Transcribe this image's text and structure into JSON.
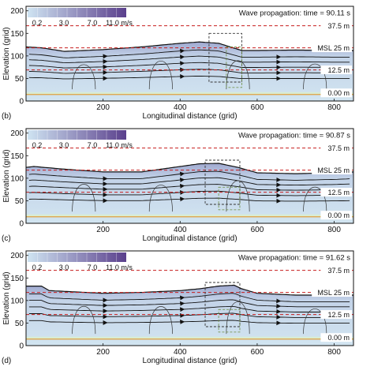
{
  "colorbar": {
    "labels": [
      "0.2",
      "3.0",
      "7.0",
      "11.0 m/s"
    ],
    "range": [
      0.2,
      11.0
    ],
    "colors": [
      "#cfe4f2",
      "#5a3f8c"
    ]
  },
  "chart_data": [
    {
      "panel": "b",
      "type": "area",
      "title": "Wave propagation: time = 90.11 s",
      "xlabel": "Longitudinal distance (grid)",
      "ylabel": "Elevation (grid)",
      "xlim": [
        0,
        850
      ],
      "ylim": [
        0,
        210
      ],
      "xticks": [
        "200",
        "400",
        "600",
        "800"
      ],
      "yticks": [
        "0",
        "50",
        "100",
        "150",
        "200"
      ],
      "reference_lines": [
        {
          "label": "37.5 m",
          "y": 167
        },
        {
          "label": "MSL 25 m",
          "y": 118
        },
        {
          "label": "12.5 m",
          "y": 69
        },
        {
          "label": "0.00 m",
          "y": 18
        }
      ],
      "surface": {
        "x": [
          0,
          40,
          100,
          200,
          300,
          350,
          400,
          450,
          500,
          530,
          560,
          600,
          700,
          800,
          850
        ],
        "y": [
          120,
          118,
          110,
          114,
          120,
          124,
          128,
          131,
          128,
          120,
          112,
          112,
          113,
          112,
          112
        ]
      },
      "highlight_box": {
        "x": [
          475,
          560
        ],
        "y": [
          42,
          150
        ]
      },
      "subbox": {
        "x": [
          520,
          560
        ],
        "y": [
          30,
          120
        ]
      }
    },
    {
      "panel": "c",
      "type": "area",
      "title": "Wave propagation: time = 90.87 s",
      "xlabel": "Longitudinal distance (grid)",
      "ylabel": "Elevation (grid)",
      "xlim": [
        0,
        850
      ],
      "ylim": [
        0,
        210
      ],
      "xticks": [
        "200",
        "400",
        "600",
        "800"
      ],
      "yticks": [
        "0",
        "50",
        "100",
        "150",
        "200"
      ],
      "reference_lines": [
        {
          "label": "37.5 m",
          "y": 167
        },
        {
          "label": "MSL 25 m",
          "y": 118
        },
        {
          "label": "12.5 m",
          "y": 69
        },
        {
          "label": "0.00 m",
          "y": 18
        }
      ],
      "surface": {
        "x": [
          0,
          20,
          100,
          200,
          300,
          400,
          450,
          500,
          550,
          600,
          700,
          800,
          850
        ],
        "y": [
          124,
          126,
          120,
          114,
          114,
          126,
          132,
          133,
          124,
          112,
          110,
          112,
          114
        ]
      },
      "highlight_box": {
        "x": [
          465,
          555
        ],
        "y": [
          42,
          140
        ]
      },
      "subbox": {
        "x": [
          500,
          555
        ],
        "y": [
          30,
          80
        ]
      }
    },
    {
      "panel": "d",
      "type": "area",
      "title": "Wave propagation: time = 91.62 s",
      "xlabel": "Longitudinal distance (grid)",
      "ylabel": "Elevation (grid)",
      "xlim": [
        0,
        850
      ],
      "ylim": [
        0,
        210
      ],
      "xticks": [
        "200",
        "400",
        "600",
        "800"
      ],
      "yticks": [
        "0",
        "50",
        "100",
        "150",
        "200"
      ],
      "reference_lines": [
        {
          "label": "37.5 m",
          "y": 167
        },
        {
          "label": "MSL 25 m",
          "y": 118
        },
        {
          "label": "12.5 m",
          "y": 69
        },
        {
          "label": "0.00 m",
          "y": 18
        }
      ],
      "surface": {
        "x": [
          0,
          40,
          60,
          200,
          300,
          400,
          450,
          500,
          540,
          560,
          600,
          700,
          800,
          850
        ],
        "y": [
          132,
          132,
          122,
          116,
          118,
          122,
          126,
          132,
          134,
          126,
          116,
          112,
          112,
          112
        ]
      },
      "highlight_box": {
        "x": [
          465,
          555
        ],
        "y": [
          42,
          140
        ]
      },
      "subbox": {
        "x": [
          500,
          555
        ],
        "y": [
          30,
          80
        ]
      }
    }
  ]
}
